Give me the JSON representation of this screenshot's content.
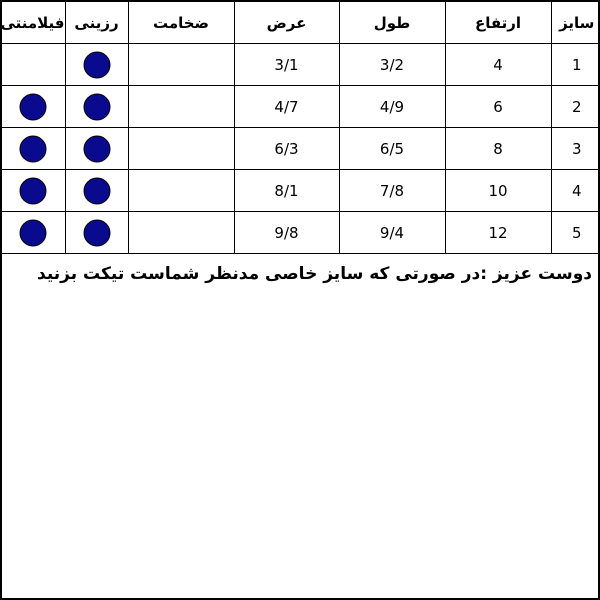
{
  "table": {
    "header": [
      "سایز",
      "ارتفاع",
      "طول",
      "عرض",
      "ضخامت",
      "رزینی",
      "فیلامنتی"
    ],
    "rows": [
      [
        1,
        4,
        "3/2",
        "3/1",
        null,
        true,
        false
      ],
      [
        2,
        6,
        "4/9",
        "4/7",
        null,
        true,
        true
      ],
      [
        3,
        8,
        "6/5",
        "6/3",
        null,
        true,
        true
      ],
      [
        4,
        10,
        "7/8",
        "8/1",
        null,
        true,
        true
      ],
      [
        5,
        12,
        "9/4",
        "9/8",
        null,
        true,
        true
      ]
    ]
  },
  "note": "دوست عزیز :در صورتی که سایز خاصی مدنظر شماست تیکت بزنید"
}
